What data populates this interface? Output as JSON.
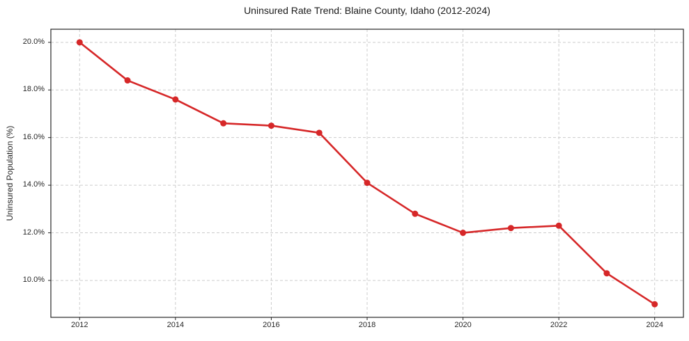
{
  "chart_data": {
    "type": "line",
    "title": "Uninsured Rate Trend: Blaine County, Idaho (2012-2024)",
    "xlabel": "",
    "ylabel": "Uninsured Population (%)",
    "x": [
      2012,
      2013,
      2014,
      2015,
      2016,
      2017,
      2018,
      2019,
      2020,
      2021,
      2022,
      2023,
      2024
    ],
    "values": [
      20.0,
      18.4,
      17.6,
      16.6,
      16.5,
      16.2,
      14.1,
      12.8,
      12.0,
      12.2,
      12.3,
      10.3,
      9.0
    ],
    "xticks": [
      2012,
      2014,
      2016,
      2018,
      2020,
      2022,
      2024
    ],
    "xtick_labels": [
      "2012",
      "2014",
      "2016",
      "2018",
      "2020",
      "2022",
      "2024"
    ],
    "yticks": [
      10,
      12,
      14,
      16,
      18,
      20
    ],
    "ytick_labels": [
      "10.0%",
      "12.0%",
      "14.0%",
      "16.0%",
      "18.0%",
      "20.0%"
    ],
    "xlim": [
      2011.4,
      2024.6
    ],
    "ylim": [
      8.45,
      20.55
    ],
    "grid": true,
    "grid_style": "dashed",
    "legend": false,
    "marker": "circle",
    "line_color": "#d62728",
    "grid_color": "#cccccc",
    "axis_color": "#262626"
  }
}
